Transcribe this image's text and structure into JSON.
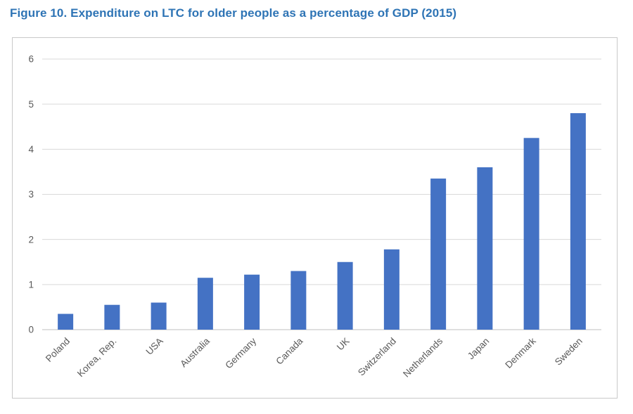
{
  "page": {
    "title": "Figure 10. Expenditure on LTC for older people as a percentage of GDP (2015)"
  },
  "colors": {
    "title": "#2E74B5",
    "bar": "#4472C4",
    "gridline": "#D9D9D9",
    "axis_line": "#BFBFBF",
    "tick_label": "#595959",
    "frame_border": "#C9C9C9",
    "background": "#FFFFFF"
  },
  "chart_data": {
    "type": "bar",
    "title": "Figure 10. Expenditure on LTC for older people as a percentage of GDP (2015)",
    "categories": [
      "Poland",
      "Korea, Rep.",
      "USA",
      "Australia",
      "Germany",
      "Canada",
      "UK",
      "Switzerland",
      "Netherlands",
      "Japan",
      "Denmark",
      "Sweden"
    ],
    "values": [
      0.35,
      0.55,
      0.6,
      1.15,
      1.22,
      1.3,
      1.5,
      1.78,
      3.35,
      3.6,
      4.25,
      4.8
    ],
    "xlabel": "",
    "ylabel": "",
    "ylim": [
      0,
      6
    ],
    "yticks": [
      0,
      1,
      2,
      3,
      4,
      5,
      6
    ],
    "grid": true,
    "legend": false,
    "bar_color": "#4472C4",
    "category_label_rotation_deg": -45
  }
}
